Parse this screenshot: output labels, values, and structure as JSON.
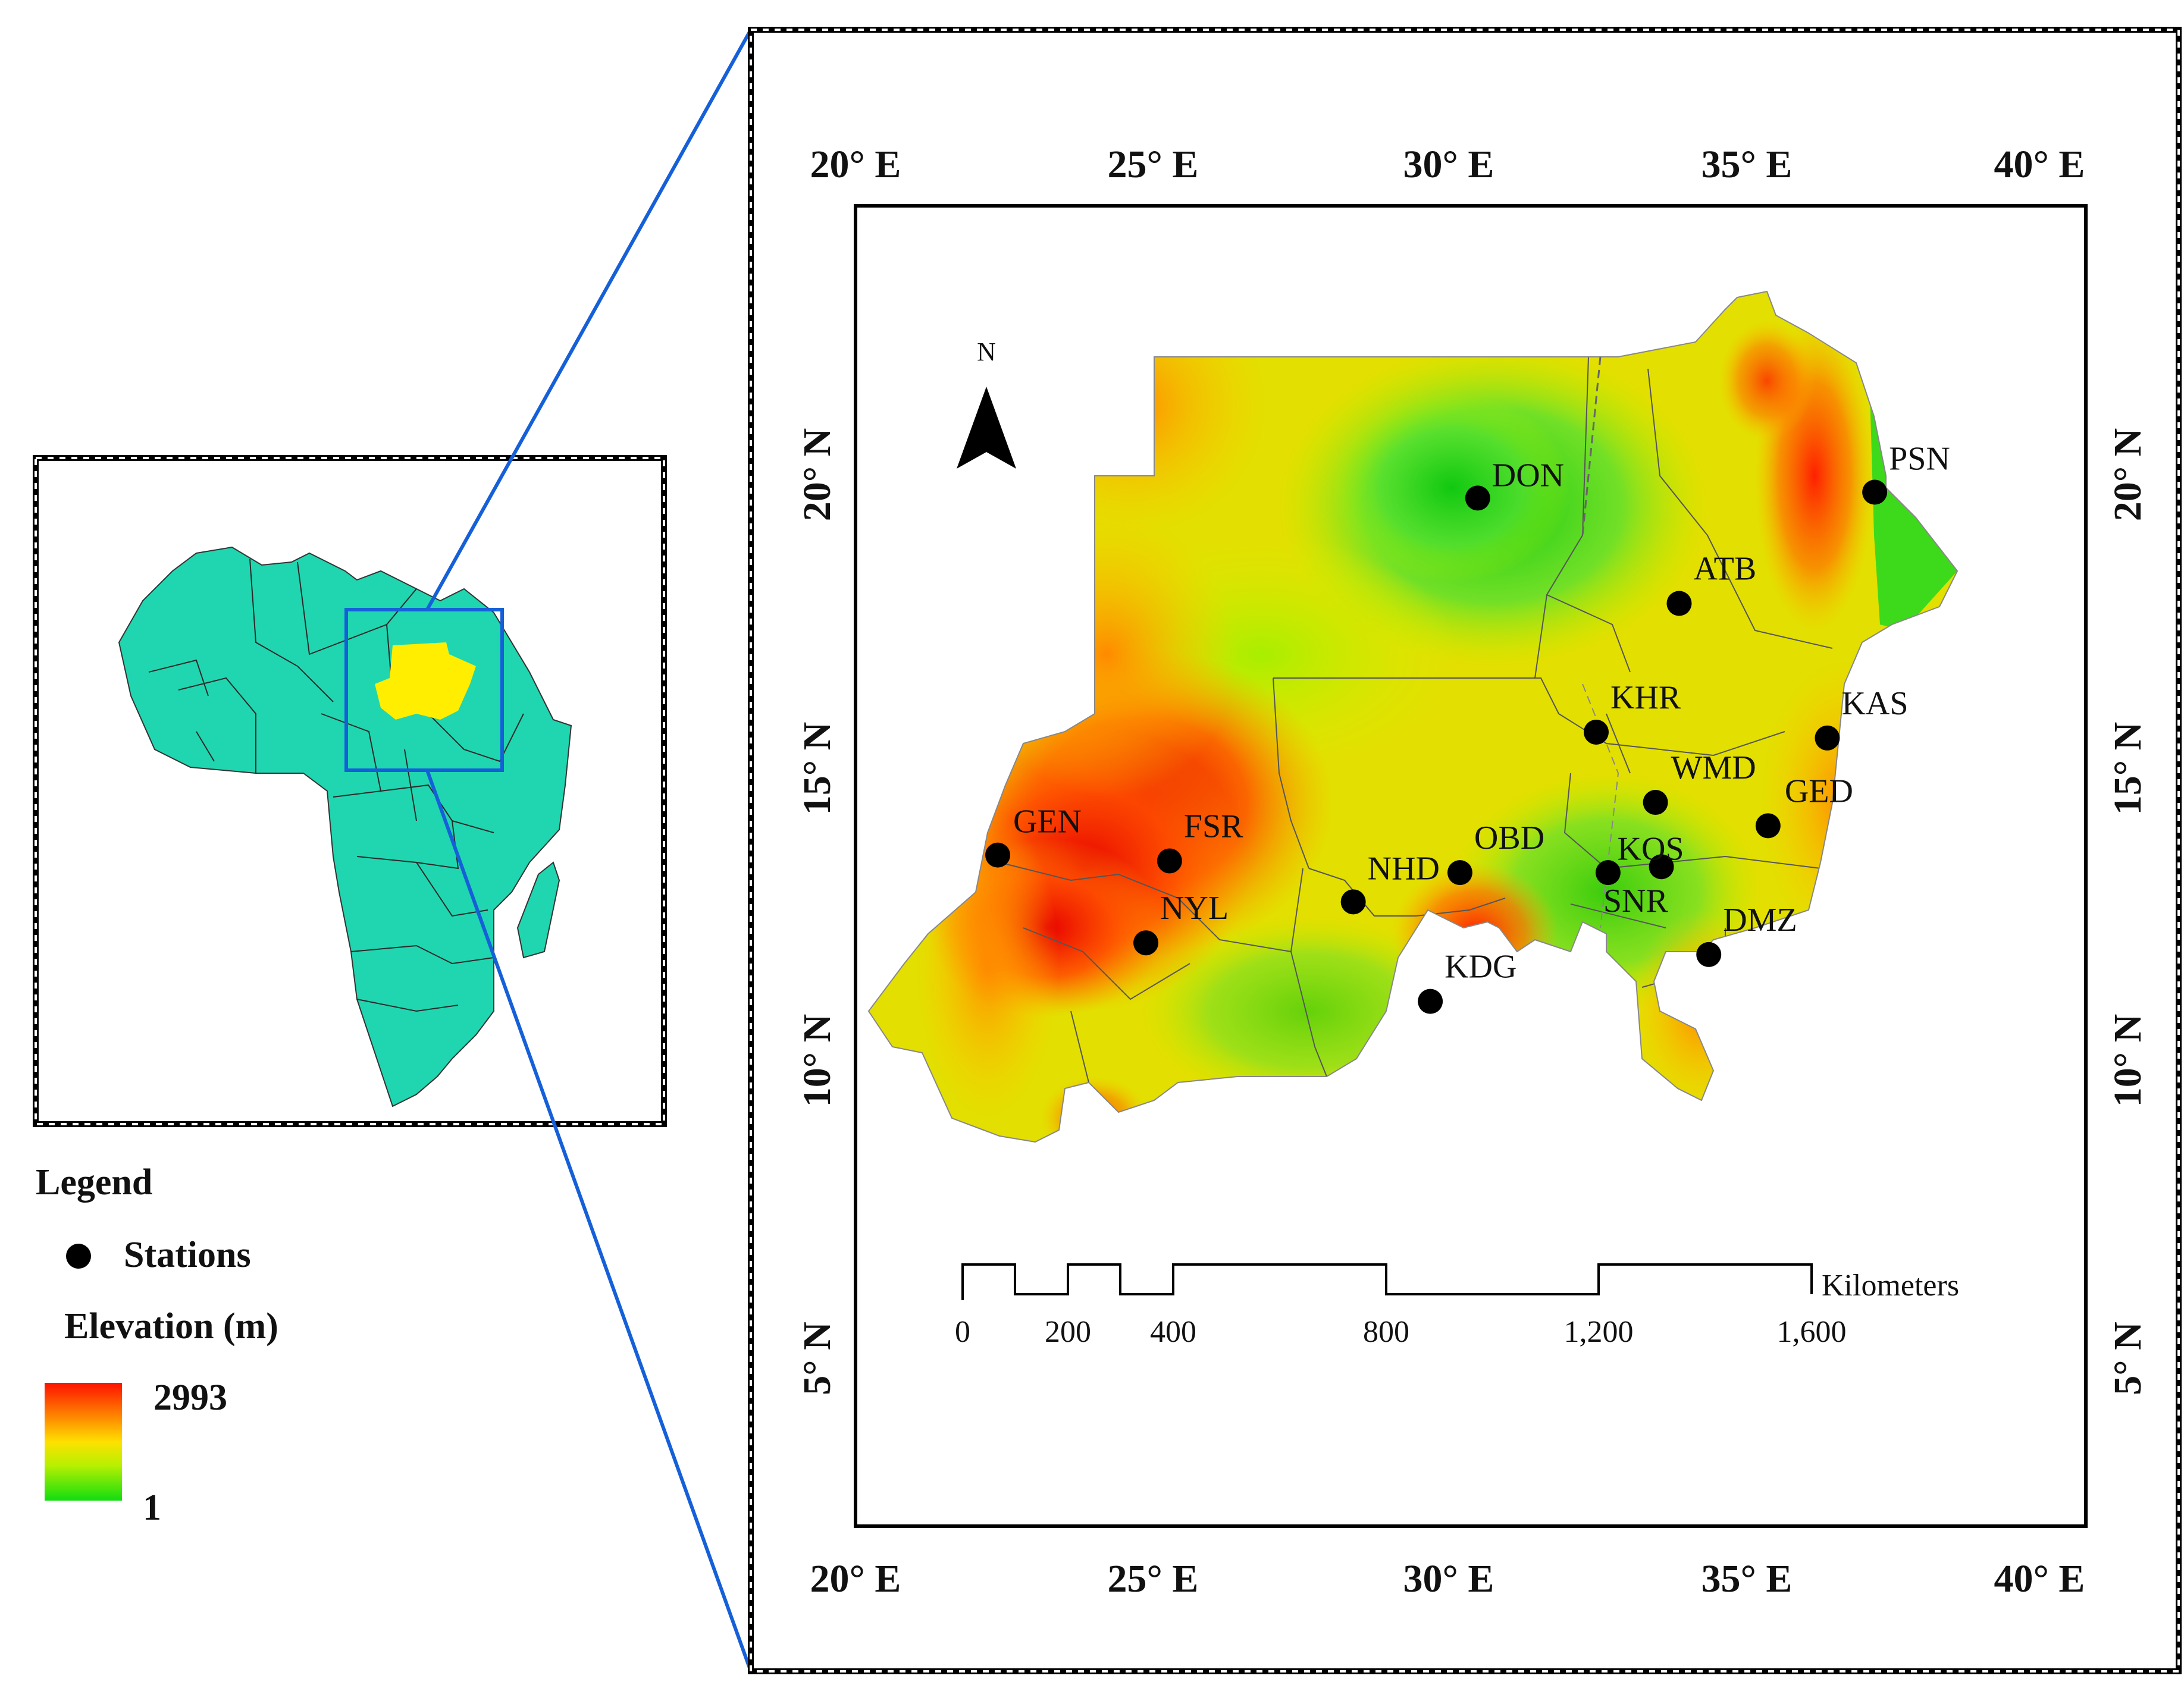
{
  "colors": {
    "africa": "#20d6b0",
    "sudan": "#ffee00",
    "high": "#ff0000",
    "mid": "#ffd700",
    "low": "#22dd11",
    "connector": "#1560d8",
    "frame": "#000000"
  },
  "main_map": {
    "top_lon_labels": [
      "20° E",
      "25° E",
      "30° E",
      "35° E",
      "40° E"
    ],
    "bottom_lon_labels": [
      "20° E",
      "25° E",
      "30° E",
      "35° E",
      "40° E"
    ],
    "left_lat_labels": [
      "20° N",
      "15° N",
      "10° N",
      "5° N"
    ],
    "right_lat_labels": [
      "20° N",
      "15° N",
      "10° N",
      "5° N"
    ],
    "north_arrow": "N"
  },
  "stations": [
    {
      "code": "DON",
      "lon": 30.5,
      "lat": 19.6
    },
    {
      "code": "PSN",
      "lon": 37.2,
      "lat": 19.7
    },
    {
      "code": "ATB",
      "lon": 33.9,
      "lat": 17.8
    },
    {
      "code": "KHR",
      "lon": 32.5,
      "lat": 15.6
    },
    {
      "code": "KAS",
      "lon": 36.4,
      "lat": 15.5
    },
    {
      "code": "WMD",
      "lon": 33.5,
      "lat": 14.4
    },
    {
      "code": "GED",
      "lon": 35.4,
      "lat": 14.0
    },
    {
      "code": "GEN",
      "lon": 22.4,
      "lat": 13.5
    },
    {
      "code": "FSR",
      "lon": 25.3,
      "lat": 13.4
    },
    {
      "code": "KOS",
      "lon": 33.6,
      "lat": 13.3
    },
    {
      "code": "OBD",
      "lon": 30.2,
      "lat": 13.2
    },
    {
      "code": "SNR",
      "lon": 32.7,
      "lat": 13.2
    },
    {
      "code": "NHD",
      "lon": 28.4,
      "lat": 12.7
    },
    {
      "code": "NYL",
      "lon": 24.9,
      "lat": 12.0
    },
    {
      "code": "DMZ",
      "lon": 34.4,
      "lat": 11.8
    },
    {
      "code": "KDG",
      "lon": 29.7,
      "lat": 11.0
    }
  ],
  "scale_bar": {
    "ticks": [
      "0",
      "200",
      "400",
      "800",
      "1,200",
      "1,600"
    ],
    "unit": "Kilometers"
  },
  "legend": {
    "title": "Legend",
    "stations_label": "Stations",
    "elevation_title": "Elevation (m)",
    "max_value": "2993",
    "min_value": "1"
  }
}
